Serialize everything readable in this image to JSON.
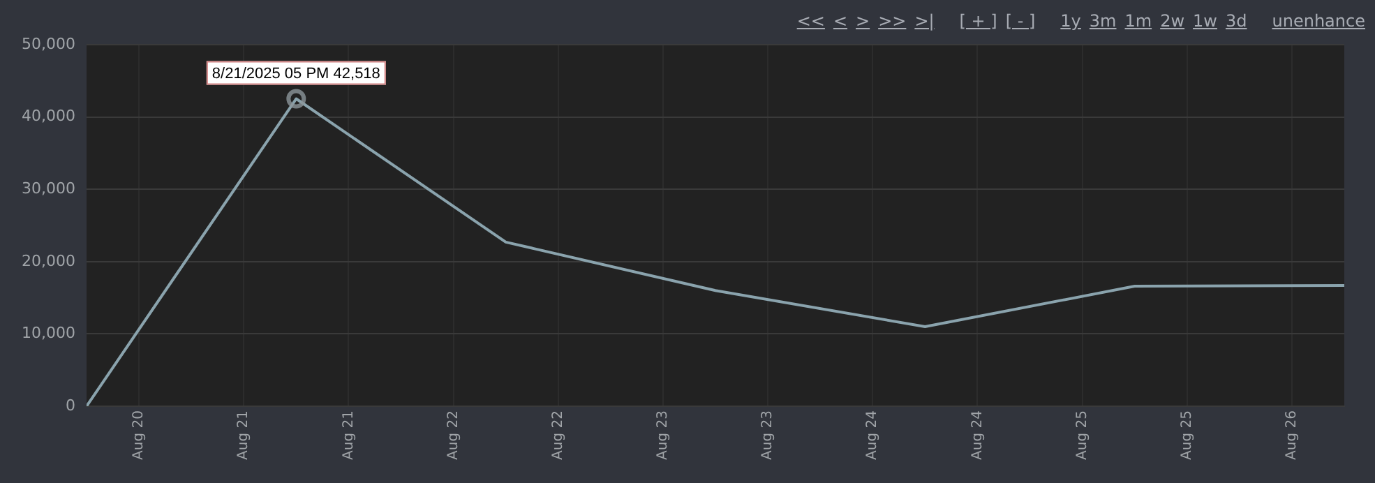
{
  "chart_data": {
    "type": "line",
    "x": [
      "2025-08-20T06:00",
      "2025-08-21T06:00",
      "2025-08-22T06:00",
      "2025-08-23T06:00",
      "2025-08-24T06:00",
      "2025-08-25T06:00",
      "2025-08-26T06:00"
    ],
    "series": [
      {
        "color": "#8aa3ad",
        "values": [
          0,
          42518,
          22700,
          16000,
          11000,
          16600,
          16700
        ]
      }
    ],
    "xlim": [
      "2025-08-20T06:00",
      "2025-08-26T06:00"
    ],
    "xticks": [
      {
        "value": "2025-08-20T12:00",
        "label": "Aug 20"
      },
      {
        "value": "2025-08-21T00:00",
        "label": "Aug 21"
      },
      {
        "value": "2025-08-21T12:00",
        "label": "Aug 21"
      },
      {
        "value": "2025-08-22T00:00",
        "label": "Aug 22"
      },
      {
        "value": "2025-08-22T12:00",
        "label": "Aug 22"
      },
      {
        "value": "2025-08-23T00:00",
        "label": "Aug 23"
      },
      {
        "value": "2025-08-23T12:00",
        "label": "Aug 23"
      },
      {
        "value": "2025-08-24T00:00",
        "label": "Aug 24"
      },
      {
        "value": "2025-08-24T12:00",
        "label": "Aug 24"
      },
      {
        "value": "2025-08-25T00:00",
        "label": "Aug 25"
      },
      {
        "value": "2025-08-25T12:00",
        "label": "Aug 25"
      },
      {
        "value": "2025-08-26T00:00",
        "label": "Aug 26"
      }
    ],
    "ylim": [
      0,
      50000
    ],
    "yticks": [
      0,
      {
        "value": 10000,
        "label": "10,000"
      },
      {
        "value": 20000,
        "label": "20,000"
      },
      {
        "value": 30000,
        "label": "30,000"
      },
      {
        "value": 40000,
        "label": "40,000"
      },
      {
        "value": 50000,
        "label": "50,000"
      }
    ],
    "grid": true,
    "legend": false,
    "marker": "none",
    "line_style": "solid",
    "annotations": [
      {
        "text": "8/21/2025 05 PM 42,518",
        "x": "2025-08-21T06:00",
        "y": 42518
      },
      "<<",
      "<",
      ">",
      ">>",
      ">|",
      "[ + ]",
      "[ - ]",
      "1y",
      "3m",
      "1m",
      "2w",
      "1w",
      "3d",
      "unenhance"
    ]
  }
}
